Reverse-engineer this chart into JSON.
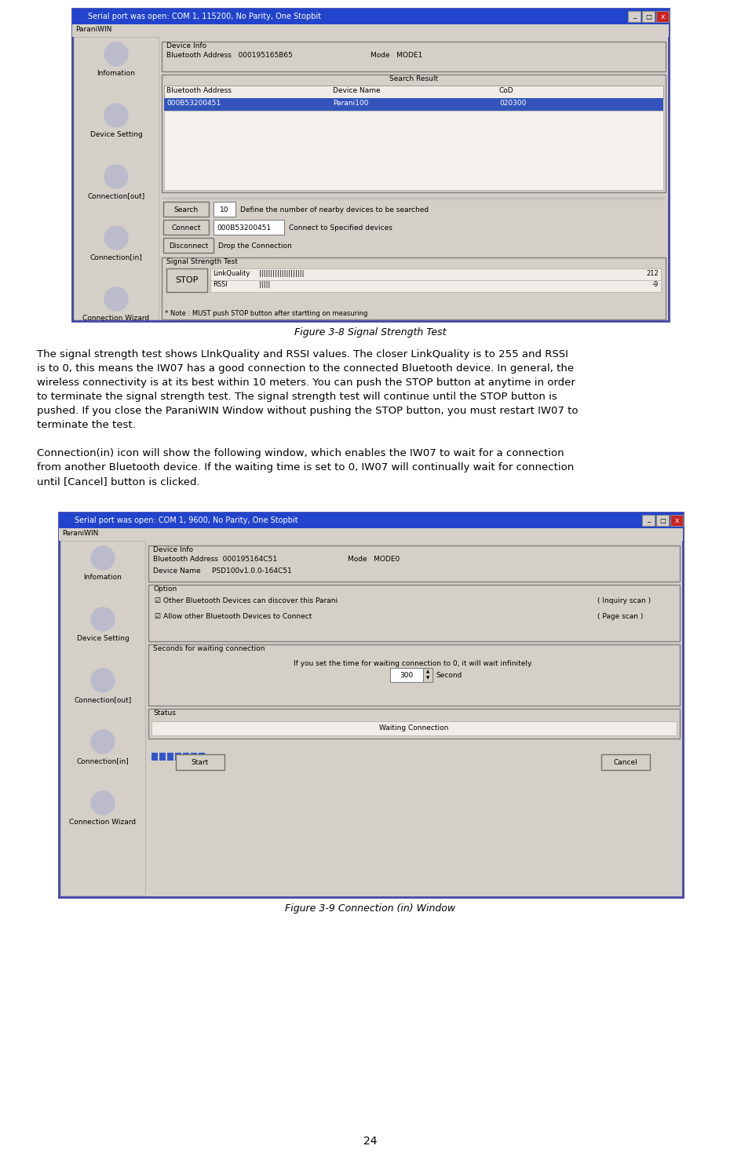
{
  "page_width": 9.44,
  "page_height": 14.69,
  "bg_color": "#ffffff",
  "fig1": {
    "title_bar": "Serial port was open: COM 1, 115200, No Parity, One Stopbit",
    "app_name": "ParaniWIN",
    "device_info_label": "Device Info",
    "bt_address_label": "Bluetooth Address",
    "bt_address_val": "000195165B65",
    "mode_label": "Mode",
    "mode_val": "MODE1",
    "search_result_label": "Search Result",
    "col1": "Bluetooth Address",
    "col2": "Device Name",
    "col3": "CoD",
    "row1_addr": "000B53200451",
    "row1_name": "Parani100",
    "row1_cod": "020300",
    "search_btn": "Search",
    "search_num": "10",
    "search_desc": "Define the number of nearby devices to be searched",
    "connect_btn": "Connect",
    "connect_addr": "000B53200451",
    "connect_desc": "Connect to Specified devices",
    "disconnect_btn": "Disconnect",
    "disconnect_desc": "Drop the Connection",
    "signal_label": "Signal Strength Test",
    "stop_btn": "STOP",
    "linkquality_label": "LinkQuality",
    "linkquality_bars": "||||||||||||||||||||",
    "linkquality_val": "212",
    "rssi_label": "RSSI",
    "rssi_bars": "|||||",
    "rssi_val": "-9",
    "note_text": "* Note : MUST push STOP button after startting on measuring",
    "sidebar_icons": [
      "Infomation",
      "Device Setting",
      "Connection[out]",
      "Connection[in]",
      "Connection Wizard"
    ]
  },
  "fig1_caption": "Figure 3-8 Signal Strength Test",
  "para1": "The signal strength test shows LInkQuality and RSSI values. The closer LinkQuality is to 255 and RSSI is to 0, this means the IW07 has a good connection to the connected Bluetooth device. In general, the wireless connectivity is at its best within 10 meters. You can push the STOP button at anytime in order to terminate the signal strength test. The signal strength test will continue until the STOP button is pushed. If you close the ParaniWIN Window without pushing the STOP button, you must restart IW07 to terminate the test.",
  "para2": "Connection(in) icon will show the following window, which enables the IW07 to wait for a connection from another Bluetooth device. If the waiting time is set to 0, IW07 will continually wait for connection until [Cancel] button is clicked.",
  "fig2": {
    "title_bar": "Serial port was open: COM 1, 9600, No Parity, One Stopbit",
    "app_name": "ParaniWIN",
    "device_info_label": "Device Info",
    "bt_address_label": "Bluetooth Address",
    "bt_address_val": "000195164C51",
    "mode_label": "Mode",
    "mode_val": "MODE0",
    "device_name_label": "Device Name",
    "device_name_val": "PSD100v1.0.0-164C51",
    "option_label": "Option",
    "check1": "☑ Other Bluetooth Devices can discover this Parani",
    "check1_right": "( Inquiry scan )",
    "check2": "☑ Allow other Bluetooth Devices to Connect",
    "check2_right": "( Page scan )",
    "wait_label": "Seconds for waiting connection",
    "wait_desc": "If you set the time for waiting connection to 0, it will wait infinitely.",
    "wait_val": "300",
    "wait_unit": "Second",
    "status_label": "Status",
    "status_val": "Waiting Connection",
    "start_btn": "Start",
    "cancel_btn": "Cancel",
    "sidebar_icons": [
      "Infomation",
      "Device Setting",
      "Connection[out]",
      "Connection[in]",
      "Connection Wizard"
    ]
  },
  "fig2_caption": "Figure 3-9 Connection (in) Window",
  "page_num": "24",
  "win_bg": "#d4d0c8",
  "inner_bg": "#f0ede8",
  "titlebar_color": "#2244cc",
  "selected_row_color": "#3355bb",
  "close_btn_color": "#cc2222"
}
